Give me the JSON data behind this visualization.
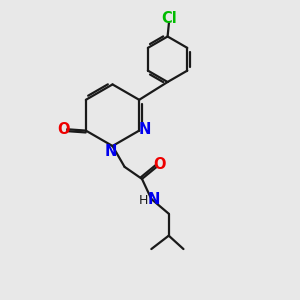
{
  "bg_color": "#e8e8e8",
  "bond_color": "#1a1a1a",
  "N_color": "#0000ee",
  "O_color": "#ee0000",
  "Cl_color": "#00bb00",
  "line_width": 1.6,
  "font_size": 10.5,
  "xlim": [
    0,
    10
  ],
  "ylim": [
    0,
    11
  ]
}
